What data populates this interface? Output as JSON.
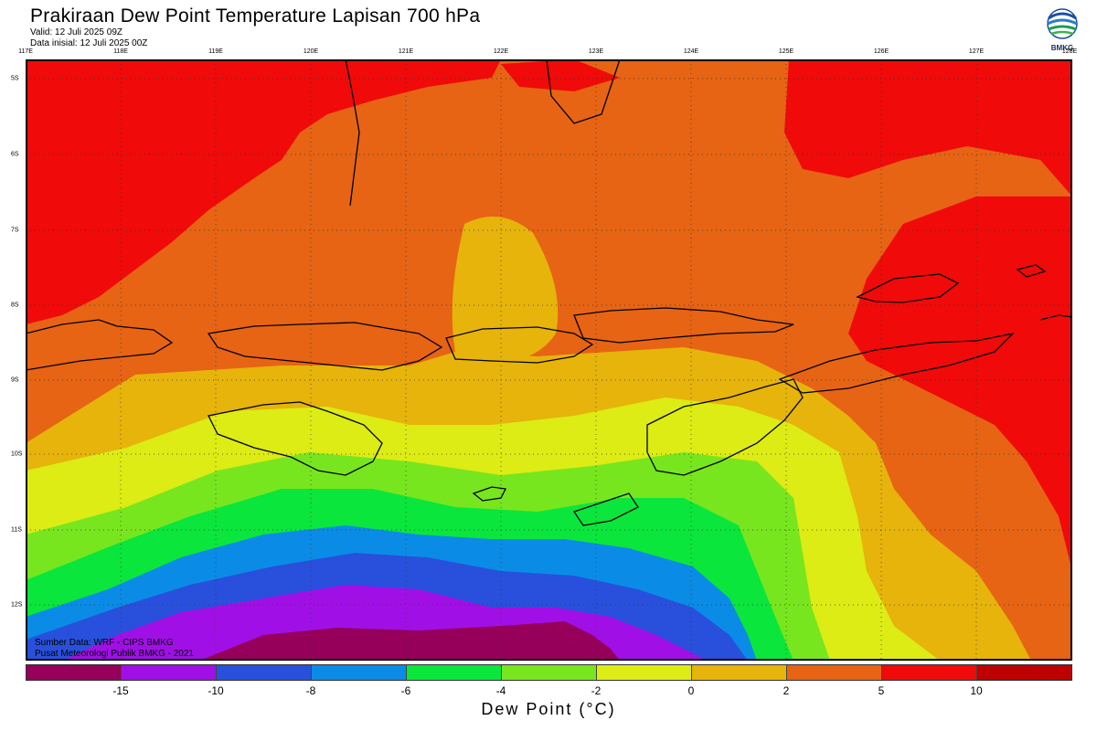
{
  "header": {
    "title": "Prakiraan Dew Point Temperature Lapisan 700 hPa",
    "valid": "Valid: 12 Juli 2025 09Z",
    "init": "Data inisial: 12 Juli 2025 00Z"
  },
  "logo": {
    "text": "BMKG",
    "icon": "bmkg-logo-icon"
  },
  "axes": {
    "lon": [
      "117E",
      "118E",
      "119E",
      "120E",
      "121E",
      "122E",
      "123E",
      "124E",
      "125E",
      "126E",
      "127E",
      "128E"
    ],
    "lat": [
      "5S",
      "6S",
      "7S",
      "8S",
      "9S",
      "10S",
      "11S",
      "12S"
    ]
  },
  "credits": {
    "source": "Sumber Data: WRF - CIPS BMKG",
    "org": "Pusat Meteorologi Publik BMKG - 2021"
  },
  "colorbar": {
    "colors": [
      "#96005a",
      "#a010e6",
      "#2850dc",
      "#0a8ce6",
      "#0ae63c",
      "#78e61e",
      "#dcec14",
      "#e6b40a",
      "#e66414",
      "#f00a0a",
      "#be0000"
    ],
    "ticks": [
      "-15",
      "-10",
      "-8",
      "-6",
      "-4",
      "-2",
      "0",
      "2",
      "5",
      "10"
    ],
    "label": "Dew Point (°C)"
  },
  "legend_values_c": [
    -15,
    -10,
    -8,
    -6,
    -4,
    -2,
    0,
    2,
    5,
    10
  ]
}
